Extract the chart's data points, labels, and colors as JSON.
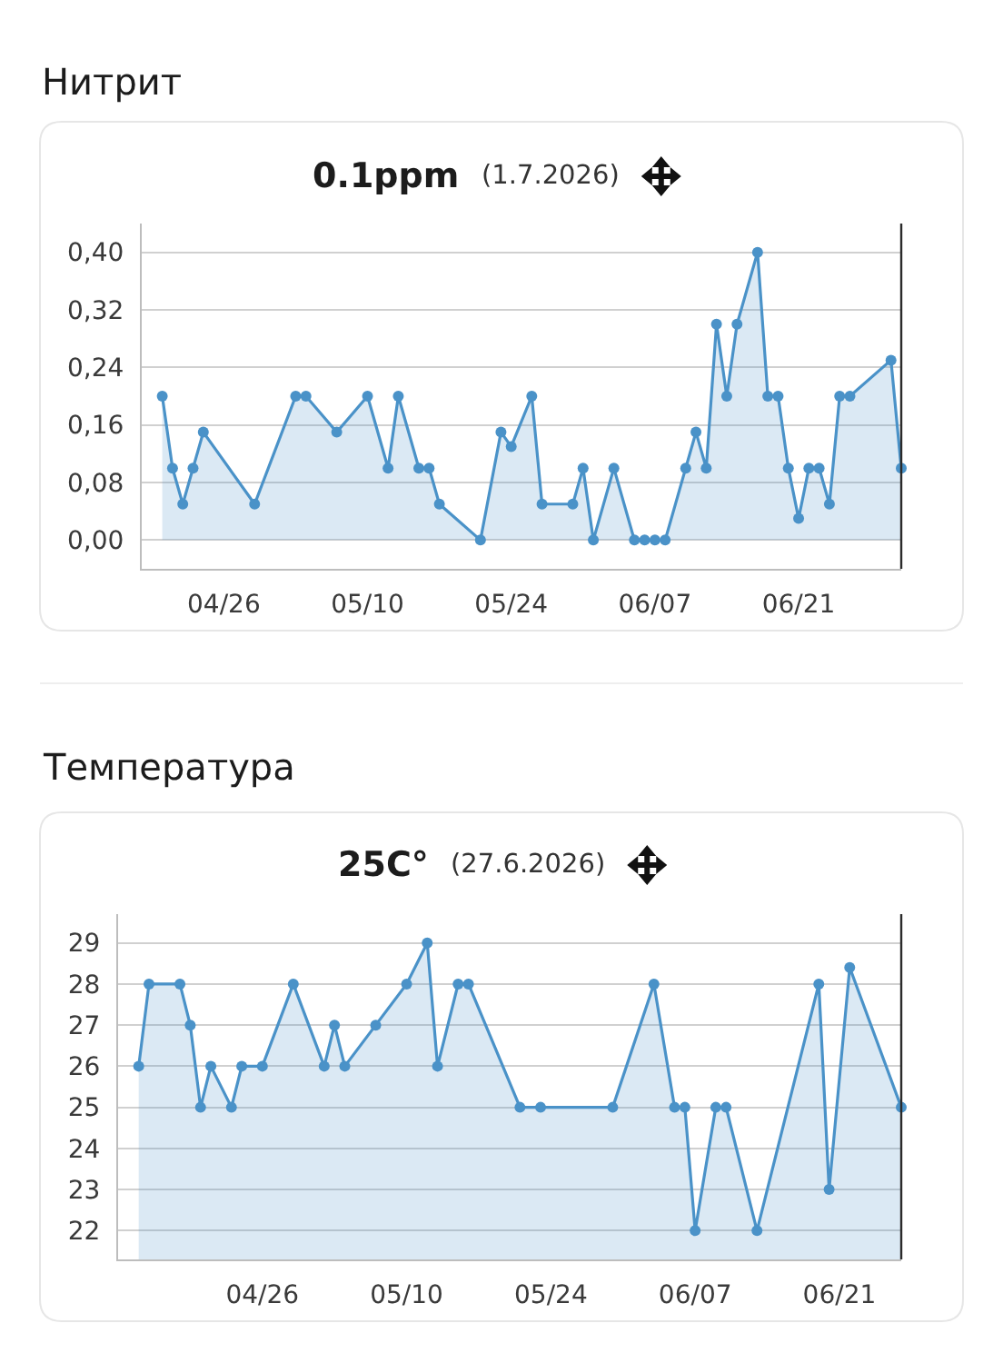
{
  "chart_data": [
    {
      "type": "area",
      "title": "Нитрит",
      "subtitle": "0.1ppm",
      "annotations": [
        "(1.7.2026)"
      ],
      "x": [
        "--04-20",
        "--04-21",
        "--04-22",
        "--04-23",
        "--04-24",
        "--04-29",
        "--05-03",
        "--05-04",
        "--05-07",
        "--05-10",
        "--05-12",
        "--05-13",
        "--05-15",
        "--05-16",
        "--05-17",
        "--05-21",
        "--05-23",
        "--05-24",
        "--05-26",
        "--05-27",
        "--05-30",
        "--05-31",
        "--06-01",
        "--06-03",
        "--06-05",
        "--06-06",
        "--06-07",
        "--06-08",
        "--06-10",
        "--06-11",
        "--06-12",
        "--06-13",
        "--06-14",
        "--06-15",
        "--06-17",
        "--06-18",
        "--06-19",
        "--06-20",
        "--06-21",
        "--06-22",
        "--06-23",
        "--06-24",
        "--06-25",
        "--06-26",
        "--06-30",
        "--07-01"
      ],
      "values": [
        0.2,
        0.1,
        0.05,
        0.1,
        0.15,
        0.05,
        0.2,
        0.2,
        0.15,
        0.2,
        0.1,
        0.2,
        0.1,
        0.1,
        0.05,
        0.0,
        0.15,
        0.13,
        0.2,
        0.05,
        0.05,
        0.1,
        0.0,
        0.1,
        0.0,
        0.0,
        0.0,
        0.0,
        0.1,
        0.15,
        0.1,
        0.3,
        0.2,
        0.3,
        0.4,
        0.2,
        0.2,
        0.1,
        0.03,
        0.1,
        0.1,
        0.05,
        0.2,
        0.2,
        0.25,
        0.1
      ],
      "color": "#4a92c8",
      "marker": "circle",
      "line_style": "solid",
      "xlim": [
        "--04-18",
        "--07-01"
      ],
      "xticks": [
        {
          "value": "--04-26",
          "label": "04/26"
        },
        {
          "value": "--05-10",
          "label": "05/10"
        },
        {
          "value": "--05-24",
          "label": "05/24"
        },
        {
          "value": "--06-07",
          "label": "06/07"
        },
        {
          "value": "--06-21",
          "label": "06/21"
        }
      ],
      "ylim": [
        -0.04,
        0.44
      ],
      "yticks": [
        {
          "value": 0,
          "label": "0,00"
        },
        {
          "value": 0.08,
          "label": "0,08"
        },
        {
          "value": 0.16,
          "label": "0,16"
        },
        {
          "value": 0.24,
          "label": "0,24"
        },
        {
          "value": 0.32,
          "label": "0,32"
        },
        {
          "value": 0.4,
          "label": "0,40"
        }
      ],
      "grid": "y"
    },
    {
      "type": "area",
      "title": "Температура",
      "subtitle": "25C°",
      "annotations": [
        "(27.6.2026)"
      ],
      "x": [
        "--04-14",
        "--04-15",
        "--04-18",
        "--04-19",
        "--04-20",
        "--04-21",
        "--04-23",
        "--04-24",
        "--04-26",
        "--04-29",
        "--05-02",
        "--05-03",
        "--05-04",
        "--05-07",
        "--05-10",
        "--05-12",
        "--05-13",
        "--05-15",
        "--05-16",
        "--05-21",
        "--05-23",
        "--05-30",
        "--06-03",
        "--06-05",
        "--06-06",
        "--06-07",
        "--06-09",
        "--06-10",
        "--06-13",
        "--06-19",
        "--06-20",
        "--06-22",
        "--06-27"
      ],
      "values": [
        26,
        28,
        28,
        27,
        25,
        26,
        25,
        26,
        26,
        28,
        26,
        27,
        26,
        27,
        28,
        29,
        26,
        28,
        28,
        25,
        25,
        25,
        28,
        25,
        25,
        22,
        25,
        25,
        22,
        28,
        23,
        28.4,
        25
      ],
      "color": "#4a92c8",
      "marker": "circle",
      "line_style": "solid",
      "xlim": [
        "--04-12",
        "--06-27"
      ],
      "xticks": [
        {
          "value": "--04-26",
          "label": "04/26"
        },
        {
          "value": "--05-10",
          "label": "05/10"
        },
        {
          "value": "--05-24",
          "label": "05/24"
        },
        {
          "value": "--06-07",
          "label": "06/07"
        },
        {
          "value": "--06-21",
          "label": "06/21"
        }
      ],
      "ylim": [
        21.3,
        29.7
      ],
      "yticks": [
        22,
        23,
        24,
        25,
        26,
        27,
        28,
        29
      ],
      "grid": "y"
    }
  ]
}
